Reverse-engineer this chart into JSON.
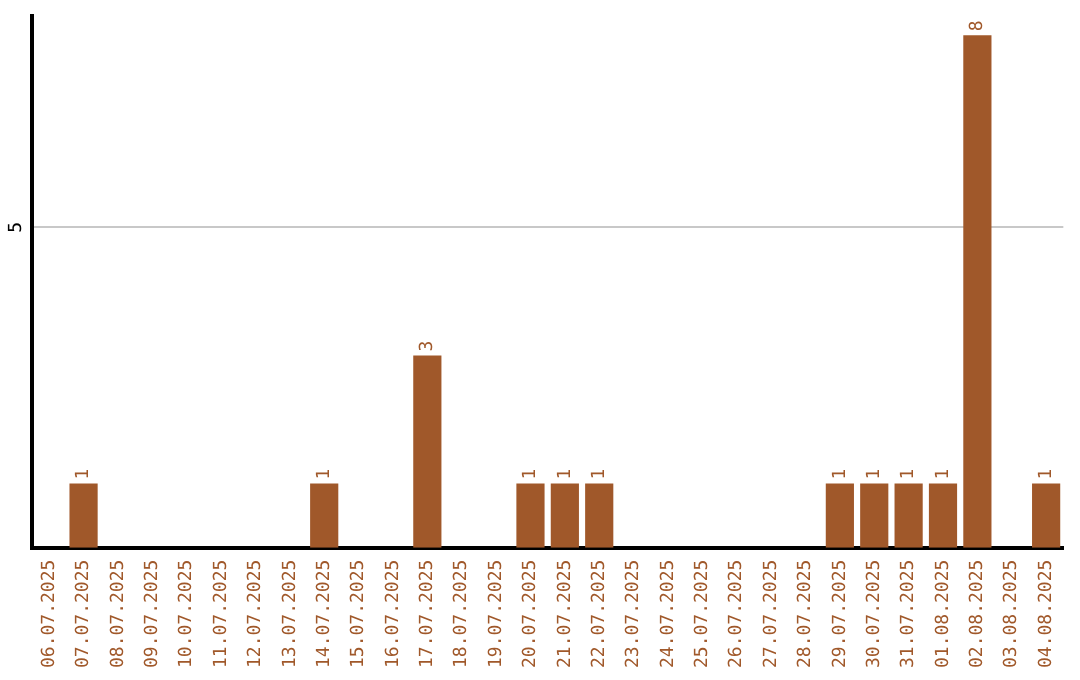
{
  "chart_data": {
    "type": "bar",
    "categories": [
      "06.07.2025",
      "07.07.2025",
      "08.07.2025",
      "09.07.2025",
      "10.07.2025",
      "11.07.2025",
      "12.07.2025",
      "13.07.2025",
      "14.07.2025",
      "15.07.2025",
      "16.07.2025",
      "17.07.2025",
      "18.07.2025",
      "19.07.2025",
      "20.07.2025",
      "21.07.2025",
      "22.07.2025",
      "23.07.2025",
      "24.07.2025",
      "25.07.2025",
      "26.07.2025",
      "27.07.2025",
      "28.07.2025",
      "29.07.2025",
      "30.07.2025",
      "31.07.2025",
      "01.08.2025",
      "02.08.2025",
      "03.08.2025",
      "04.08.2025"
    ],
    "values": [
      0,
      1,
      0,
      0,
      0,
      0,
      0,
      0,
      1,
      0,
      0,
      3,
      0,
      0,
      1,
      1,
      1,
      0,
      0,
      0,
      0,
      0,
      0,
      1,
      1,
      1,
      1,
      8,
      0,
      1
    ],
    "color": "#a0582a",
    "value_labels": [
      null,
      "1",
      null,
      null,
      null,
      null,
      null,
      null,
      "1",
      null,
      null,
      "3",
      null,
      null,
      "1",
      "1",
      "1",
      null,
      null,
      null,
      null,
      null,
      null,
      "1",
      "1",
      "1",
      "1",
      "8",
      null,
      "1"
    ],
    "ylim": [
      0,
      8.3
    ],
    "yticks": [
      5
    ],
    "grid": "y",
    "legend": false
  }
}
